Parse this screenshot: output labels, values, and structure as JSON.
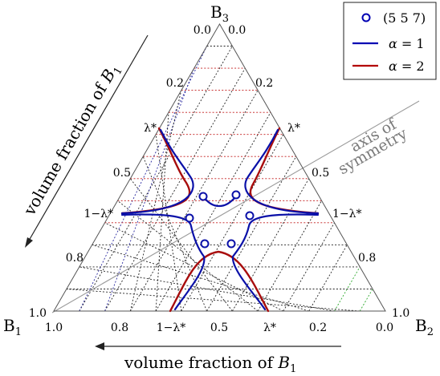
{
  "vertices": {
    "top": "B",
    "top_sub": "3",
    "left": "B",
    "left_sub": "1",
    "right": "B",
    "right_sub": "2"
  },
  "edge_ticks": {
    "left": [
      "0.0",
      "0.2",
      "λ*",
      "0.5",
      "1−λ*",
      "0.8",
      "1.0"
    ],
    "right": [
      "0.0",
      "0.2",
      "λ*",
      "0.5",
      "1−λ*",
      "0.8",
      "1.0"
    ],
    "bottom": [
      "1.0",
      "0.8",
      "1−λ*",
      "0.5",
      "λ*",
      "0.2",
      "0.0"
    ]
  },
  "axis_labels": {
    "left_prefix": "volume fraction of ",
    "left_var": "B",
    "left_sub": "1",
    "bottom_prefix": "volume fraction of ",
    "bottom_var": "B",
    "bottom_sub": "1"
  },
  "symmetry_label": {
    "line1": "axis of",
    "line2": "symmetry"
  },
  "legend": [
    {
      "label": "(5 5 7)",
      "marker": "circle",
      "color": "#0000b3"
    },
    {
      "label_var": "α",
      "label_rest": " = 1",
      "marker": "line",
      "color": "#0000b3"
    },
    {
      "label_var": "α",
      "label_rest": " = 2",
      "marker": "line",
      "color": "#b30000"
    }
  ],
  "colors": {
    "alpha1": "#0a10a8",
    "alpha2": "#a80d0d",
    "grid_red": "#c21a1a",
    "grid_blue": "#2a2aa0",
    "grid_green": "#2aa82a",
    "grid_black": "#222222",
    "symmetry": "#9a9a9a"
  }
}
